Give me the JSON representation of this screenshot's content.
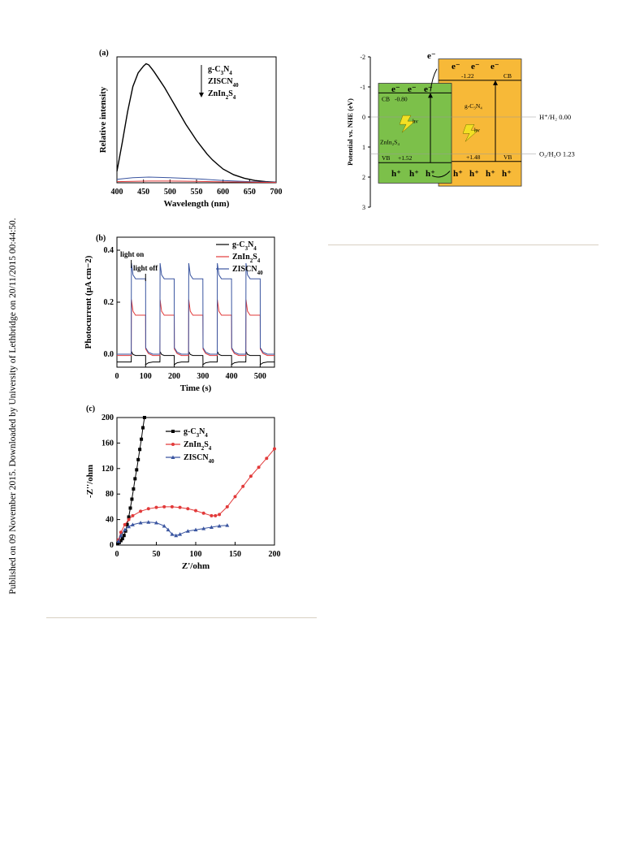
{
  "side_note": "Published on 09 November 2015. Downloaded by University of Lethbridge on 20/11/2015 00:44:50.",
  "chart_data": [
    {
      "panel": "(a)",
      "type": "line",
      "xlabel": "Wavelength (nm)",
      "ylabel": "Relative intensity",
      "xlim": [
        400,
        700
      ],
      "xticks": [
        "400",
        "450",
        "500",
        "550",
        "600",
        "650",
        "700"
      ],
      "legend": [
        "g-C3N4",
        "ZISCN40",
        "ZnIn2S4"
      ],
      "legend_placement": "top-right",
      "series": [
        {
          "name": "g-C3N4",
          "color": "#000000",
          "x": [
            400,
            410,
            420,
            430,
            440,
            450,
            455,
            460,
            465,
            470,
            480,
            490,
            500,
            510,
            520,
            530,
            540,
            550,
            560,
            570,
            580,
            590,
            600,
            620,
            640,
            660,
            680,
            700
          ],
          "y": [
            0.1,
            0.35,
            0.62,
            0.84,
            0.96,
            1.02,
            1.04,
            1.03,
            1.0,
            0.97,
            0.9,
            0.83,
            0.75,
            0.67,
            0.59,
            0.51,
            0.44,
            0.37,
            0.31,
            0.25,
            0.2,
            0.16,
            0.12,
            0.07,
            0.04,
            0.02,
            0.01,
            0.005
          ]
        },
        {
          "name": "ZISCN40",
          "color": "#3a55a0",
          "x": [
            400,
            430,
            460,
            500,
            550,
            600,
            650,
            700
          ],
          "y": [
            0.03,
            0.045,
            0.05,
            0.045,
            0.035,
            0.02,
            0.01,
            0.005
          ]
        },
        {
          "name": "ZnIn2S4",
          "color": "#e23a3a",
          "x": [
            400,
            430,
            460,
            500,
            550,
            600,
            650,
            700
          ],
          "y": [
            0.01,
            0.012,
            0.015,
            0.015,
            0.012,
            0.008,
            0.005,
            0.003
          ]
        }
      ]
    },
    {
      "panel": "(b)",
      "type": "line",
      "xlabel": "Time (s)",
      "ylabel": "Photocurrent (μA cm−2)",
      "xlim": [
        0,
        550
      ],
      "ylim": [
        -0.05,
        0.45
      ],
      "xticks": [
        "0",
        "100",
        "200",
        "300",
        "400",
        "500"
      ],
      "yticks": [
        "0.0",
        "0.2",
        "0.4"
      ],
      "annotations": [
        "light on",
        "light off"
      ],
      "legend": [
        "g-C3N4",
        "ZnIn2S4",
        "ZISCN40"
      ],
      "legend_placement": "top-right",
      "light_on_intervals": [
        [
          50,
          100
        ],
        [
          150,
          200
        ],
        [
          250,
          300
        ],
        [
          350,
          400
        ],
        [
          450,
          500
        ]
      ],
      "series": [
        {
          "name": "g-C3N4",
          "color": "#000000",
          "on_spike": 0.01,
          "on_level": -0.005,
          "off_spike": -0.04,
          "off_level": -0.03
        },
        {
          "name": "ZnIn2S4",
          "color": "#e23a3a",
          "on_spike": 0.21,
          "on_level": 0.15,
          "off_spike": 0.02,
          "off_level": -0.005
        },
        {
          "name": "ZISCN40",
          "color": "#3a55a0",
          "on_spike": 0.35,
          "on_level": 0.29,
          "off_spike": 0.025,
          "off_level": 0.0
        }
      ]
    },
    {
      "panel": "(c)",
      "type": "scatter",
      "xlabel": "Z'/ohm",
      "ylabel": "-Z''/ohm",
      "xlim": [
        0,
        200
      ],
      "ylim": [
        0,
        200
      ],
      "xticks": [
        "0",
        "50",
        "100",
        "150",
        "200"
      ],
      "yticks": [
        "0",
        "40",
        "80",
        "120",
        "160",
        "200"
      ],
      "legend": [
        "g-C3N4",
        "ZnIn2S4",
        "ZISCN40"
      ],
      "legend_placement": "top-right",
      "series": [
        {
          "name": "g-C3N4",
          "color": "#000000",
          "marker": "square",
          "x": [
            1,
            3,
            5,
            7,
            9,
            11,
            13,
            15,
            17,
            19,
            21,
            23,
            25,
            27,
            29,
            31,
            33,
            35
          ],
          "y": [
            2,
            4,
            7,
            10,
            15,
            22,
            32,
            44,
            58,
            72,
            88,
            104,
            118,
            134,
            150,
            166,
            184,
            200
          ]
        },
        {
          "name": "ZnIn2S4",
          "color": "#e23a3a",
          "marker": "circle",
          "x": [
            2,
            5,
            10,
            15,
            20,
            30,
            40,
            50,
            60,
            70,
            80,
            90,
            100,
            110,
            120,
            125,
            130,
            140,
            150,
            160,
            170,
            180,
            190,
            200
          ],
          "y": [
            8,
            20,
            32,
            40,
            46,
            53,
            57,
            59,
            60,
            60,
            59,
            57,
            54,
            50,
            46,
            46,
            48,
            60,
            76,
            92,
            108,
            122,
            136,
            151
          ]
        },
        {
          "name": "ZISCN40",
          "color": "#3a55a0",
          "marker": "triangle",
          "x": [
            2,
            5,
            10,
            15,
            20,
            30,
            40,
            50,
            60,
            65,
            70,
            75,
            80,
            90,
            100,
            110,
            120,
            130,
            140
          ],
          "y": [
            6,
            15,
            24,
            29,
            32,
            35,
            36,
            35,
            30,
            24,
            17,
            15,
            17,
            22,
            24,
            26,
            28,
            30,
            31
          ]
        }
      ]
    },
    {
      "panel": "band-diagram",
      "type": "diagram",
      "ylabel": "Potential vs. NHE (eV)",
      "ylim": [
        -2,
        3
      ],
      "yticks": [
        "-2",
        "-1",
        "0",
        "1",
        "2",
        "3"
      ],
      "blocks": [
        {
          "name": "ZnIn2S4",
          "color": "#7cc04a",
          "cb": -0.8,
          "vb": 1.52,
          "cb_label": "CB",
          "cb_value": "-0.80",
          "vb_label": "VB",
          "vb_value": "+1.52"
        },
        {
          "name": "g-C3N4",
          "color": "#f7b938",
          "cb": -1.22,
          "vb": 1.48,
          "cb_label": "CB",
          "cb_value": "-1.22",
          "vb_label": "VB",
          "vb_value": "+1.48"
        }
      ],
      "levels": [
        {
          "label": "H⁺/H₂ 0.00",
          "value": 0
        },
        {
          "label": "O₂/H₂O 1.23",
          "value": 1.23
        }
      ],
      "electron": "e⁻",
      "hole": "h⁺",
      "photon": "hν",
      "block_labels": [
        "ZnIn₂S₄",
        "g-C₃N₄"
      ]
    }
  ]
}
